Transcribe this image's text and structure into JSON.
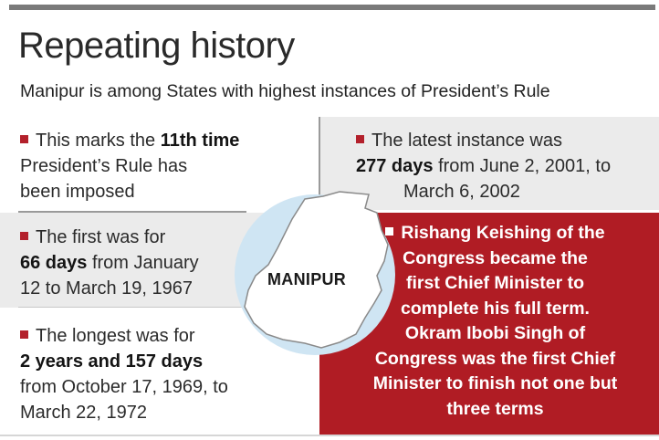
{
  "header": {
    "title": "Repeating history",
    "subtitle": "Manipur is among States with highest instances of President’s Rule"
  },
  "map": {
    "label": "MANIPUR",
    "icon": "manipur-map-outline-icon"
  },
  "facts": {
    "eleventh": {
      "line1_pre": "This marks the ",
      "line1_bold": "11th time",
      "line2": "President’s Rule has",
      "line3": "been imposed"
    },
    "latest": {
      "line1": "The latest instance was",
      "line2_bold": "277 days",
      "line2_post": " from June 2, 2001, to",
      "line3": "March 6, 2002"
    },
    "first": {
      "line1": "The first was for",
      "line2_bold": "66 days",
      "line2_post": " from January",
      "line3": "12 to March 19, 1967"
    },
    "longest": {
      "line1": "The longest was for",
      "line2_bold": "2 years and 157 days",
      "line3": "from October 17, 1969, to",
      "line4": "March 22, 1972"
    },
    "chief_minister": {
      "lines": [
        "Rishang Keishing of the",
        "Congress became the",
        "first Chief Minister to",
        "complete his full term.",
        "Okram Ibobi Singh of",
        "Congress was the first Chief",
        "Minister to finish not one but",
        "three terms"
      ]
    }
  },
  "colors": {
    "accent_red": "#b01c24",
    "panel_gray": "#ebebeb",
    "bullet_red": "#b3202b"
  }
}
